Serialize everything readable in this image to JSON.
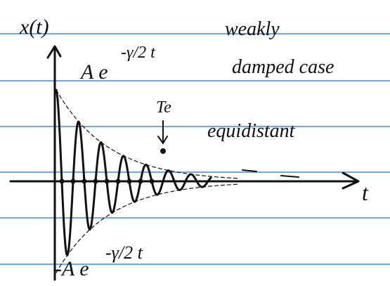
{
  "axes": {
    "y_label": "x(t)",
    "x_label": "t"
  },
  "heading": {
    "line1": "weakly",
    "line2": "damped case"
  },
  "upper_envelope": {
    "base": "A e",
    "exponent": "-γ/2 t"
  },
  "lower_envelope": {
    "base": "-A e",
    "exponent": "-γ/2 t"
  },
  "annotations": {
    "period": "Te",
    "note": "equidistant"
  }
}
